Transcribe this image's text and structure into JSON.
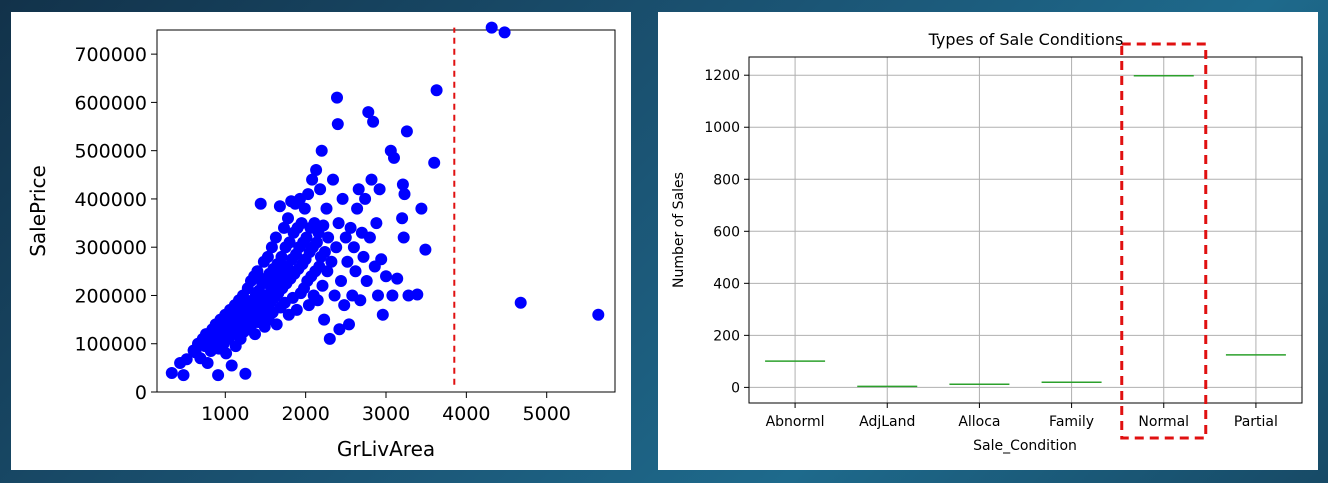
{
  "chart_data": [
    {
      "type": "scatter",
      "title": "",
      "xlabel": "GrLivArea",
      "ylabel": "SalePrice",
      "xlim": [
        150,
        5850
      ],
      "ylim": [
        0,
        750000
      ],
      "xticks": [
        1000,
        2000,
        3000,
        4000,
        5000
      ],
      "xtick_labels": [
        "1000",
        "2000",
        "3000",
        "4000",
        "5000"
      ],
      "yticks": [
        0,
        100000,
        200000,
        300000,
        400000,
        500000,
        600000,
        700000
      ],
      "ytick_labels": [
        "0",
        "100000",
        "200000",
        "300000",
        "400000",
        "500000",
        "600000",
        "700000"
      ],
      "grid": false,
      "marker_color": "#0000ff",
      "threshold_line": {
        "x": 3850,
        "y_range": [
          15000,
          755000
        ],
        "color": "#e01010",
        "style": "dashed"
      },
      "points": [
        [
          334,
          39300
        ],
        [
          438,
          60000
        ],
        [
          480,
          35000
        ],
        [
          520,
          68000
        ],
        [
          605,
          86000
        ],
        [
          630,
          82000
        ],
        [
          660,
          100000
        ],
        [
          690,
          70000
        ],
        [
          720,
          110000
        ],
        [
          750,
          95000
        ],
        [
          760,
          120000
        ],
        [
          780,
          60000
        ],
        [
          800,
          118000
        ],
        [
          820,
          85000
        ],
        [
          840,
          130000
        ],
        [
          860,
          105000
        ],
        [
          880,
          140000
        ],
        [
          900,
          115000
        ],
        [
          910,
          35000
        ],
        [
          920,
          90000
        ],
        [
          940,
          150000
        ],
        [
          960,
          125000
        ],
        [
          980,
          100000
        ],
        [
          1000,
          160000
        ],
        [
          1000,
          135000
        ],
        [
          1010,
          80000
        ],
        [
          1020,
          145000
        ],
        [
          1040,
          110000
        ],
        [
          1060,
          170000
        ],
        [
          1070,
          130000
        ],
        [
          1080,
          55000
        ],
        [
          1090,
          150000
        ],
        [
          1100,
          120000
        ],
        [
          1120,
          180000
        ],
        [
          1130,
          95000
        ],
        [
          1140,
          160000
        ],
        [
          1150,
          135000
        ],
        [
          1170,
          190000
        ],
        [
          1180,
          140000
        ],
        [
          1190,
          110000
        ],
        [
          1200,
          170000
        ],
        [
          1210,
          145000
        ],
        [
          1220,
          200000
        ],
        [
          1230,
          125000
        ],
        [
          1240,
          160000
        ],
        [
          1250,
          38000
        ],
        [
          1260,
          185000
        ],
        [
          1270,
          150000
        ],
        [
          1280,
          215000
        ],
        [
          1290,
          130000
        ],
        [
          1300,
          175000
        ],
        [
          1310,
          160000
        ],
        [
          1320,
          230000
        ],
        [
          1330,
          140000
        ],
        [
          1340,
          190000
        ],
        [
          1350,
          155000
        ],
        [
          1360,
          240000
        ],
        [
          1370,
          120000
        ],
        [
          1380,
          200000
        ],
        [
          1390,
          170000
        ],
        [
          1400,
          250000
        ],
        [
          1410,
          145000
        ],
        [
          1420,
          210000
        ],
        [
          1430,
          180000
        ],
        [
          1440,
          390000
        ],
        [
          1450,
          160000
        ],
        [
          1460,
          225000
        ],
        [
          1470,
          190000
        ],
        [
          1480,
          270000
        ],
        [
          1490,
          135000
        ],
        [
          1500,
          235000
        ],
        [
          1510,
          175000
        ],
        [
          1520,
          200000
        ],
        [
          1530,
          280000
        ],
        [
          1540,
          150000
        ],
        [
          1550,
          245000
        ],
        [
          1560,
          185000
        ],
        [
          1570,
          215000
        ],
        [
          1580,
          300000
        ],
        [
          1590,
          165000
        ],
        [
          1600,
          255000
        ],
        [
          1610,
          195000
        ],
        [
          1620,
          230000
        ],
        [
          1630,
          320000
        ],
        [
          1640,
          140000
        ],
        [
          1650,
          265000
        ],
        [
          1660,
          205000
        ],
        [
          1670,
          240000
        ],
        [
          1680,
          385000
        ],
        [
          1690,
          175000
        ],
        [
          1700,
          280000
        ],
        [
          1710,
          215000
        ],
        [
          1720,
          250000
        ],
        [
          1730,
          340000
        ],
        [
          1740,
          185000
        ],
        [
          1750,
          300000
        ],
        [
          1760,
          225000
        ],
        [
          1770,
          260000
        ],
        [
          1780,
          360000
        ],
        [
          1790,
          160000
        ],
        [
          1800,
          310000
        ],
        [
          1810,
          235000
        ],
        [
          1820,
          395000
        ],
        [
          1830,
          275000
        ],
        [
          1840,
          195000
        ],
        [
          1850,
          330000
        ],
        [
          1860,
          245000
        ],
        [
          1870,
          390000
        ],
        [
          1880,
          285000
        ],
        [
          1890,
          170000
        ],
        [
          1900,
          340000
        ],
        [
          1910,
          255000
        ],
        [
          1920,
          300000
        ],
        [
          1930,
          400000
        ],
        [
          1940,
          205000
        ],
        [
          1950,
          350000
        ],
        [
          1960,
          265000
        ],
        [
          1970,
          310000
        ],
        [
          1980,
          215000
        ],
        [
          1990,
          380000
        ],
        [
          2000,
          275000
        ],
        [
          2010,
          320000
        ],
        [
          2020,
          230000
        ],
        [
          2030,
          410000
        ],
        [
          2040,
          180000
        ],
        [
          2050,
          290000
        ],
        [
          2060,
          340000
        ],
        [
          2070,
          240000
        ],
        [
          2080,
          440000
        ],
        [
          2090,
          300000
        ],
        [
          2100,
          200000
        ],
        [
          2110,
          350000
        ],
        [
          2120,
          250000
        ],
        [
          2130,
          460000
        ],
        [
          2140,
          310000
        ],
        [
          2150,
          190000
        ],
        [
          2160,
          330000
        ],
        [
          2170,
          260000
        ],
        [
          2180,
          420000
        ],
        [
          2190,
          280000
        ],
        [
          2200,
          500000
        ],
        [
          2210,
          220000
        ],
        [
          2220,
          345000
        ],
        [
          2230,
          150000
        ],
        [
          2240,
          290000
        ],
        [
          2260,
          380000
        ],
        [
          2270,
          250000
        ],
        [
          2280,
          320000
        ],
        [
          2300,
          110000
        ],
        [
          2320,
          270000
        ],
        [
          2340,
          440000
        ],
        [
          2360,
          200000
        ],
        [
          2380,
          300000
        ],
        [
          2390,
          610000
        ],
        [
          2400,
          555000
        ],
        [
          2410,
          350000
        ],
        [
          2420,
          130000
        ],
        [
          2440,
          230000
        ],
        [
          2460,
          400000
        ],
        [
          2480,
          180000
        ],
        [
          2500,
          320000
        ],
        [
          2520,
          270000
        ],
        [
          2540,
          140000
        ],
        [
          2560,
          340000
        ],
        [
          2580,
          200000
        ],
        [
          2600,
          300000
        ],
        [
          2620,
          250000
        ],
        [
          2640,
          380000
        ],
        [
          2660,
          420000
        ],
        [
          2680,
          190000
        ],
        [
          2700,
          330000
        ],
        [
          2720,
          280000
        ],
        [
          2740,
          400000
        ],
        [
          2760,
          230000
        ],
        [
          2780,
          580000
        ],
        [
          2800,
          320000
        ],
        [
          2820,
          440000
        ],
        [
          2840,
          560000
        ],
        [
          2860,
          260000
        ],
        [
          2880,
          350000
        ],
        [
          2900,
          200000
        ],
        [
          2920,
          420000
        ],
        [
          2940,
          275000
        ],
        [
          2960,
          160000
        ],
        [
          3000,
          240000
        ],
        [
          3060,
          500000
        ],
        [
          3080,
          200000
        ],
        [
          3100,
          485000
        ],
        [
          3140,
          235000
        ],
        [
          3200,
          360000
        ],
        [
          3210,
          430000
        ],
        [
          3220,
          320000
        ],
        [
          3230,
          410000
        ],
        [
          3260,
          540000
        ],
        [
          3280,
          200000
        ],
        [
          3390,
          202000
        ],
        [
          3440,
          380000
        ],
        [
          3490,
          295000
        ],
        [
          3600,
          475000
        ],
        [
          3630,
          625000
        ],
        [
          4316,
          755000
        ],
        [
          4476,
          745000
        ],
        [
          4676,
          184750
        ],
        [
          5642,
          160000
        ]
      ]
    },
    {
      "type": "box",
      "title": "Types of Sale Conditions",
      "xlabel": "Sale_Condition",
      "ylabel": "Number of Sales",
      "categories": [
        "Abnorml",
        "AdjLand",
        "Alloca",
        "Family",
        "Normal",
        "Partial"
      ],
      "values": [
        101,
        4,
        12,
        20,
        1198,
        125
      ],
      "ylim": [
        -60,
        1270
      ],
      "yticks": [
        0,
        200,
        400,
        600,
        800,
        1000,
        1200
      ],
      "ytick_labels": [
        "0",
        "200",
        "400",
        "600",
        "800",
        "1000",
        "1200"
      ],
      "grid": true,
      "median_color": "#2ca02c",
      "highlight_category": "Normal",
      "highlight_color": "#e01010"
    }
  ]
}
